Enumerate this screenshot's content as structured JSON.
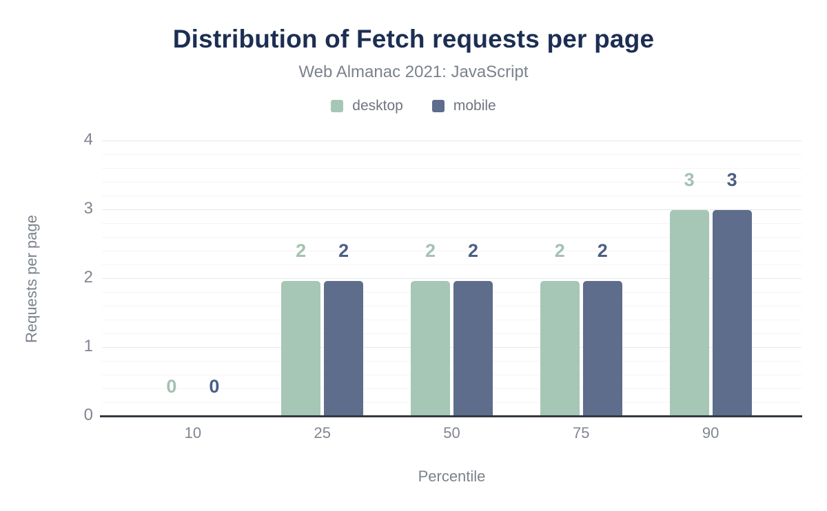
{
  "chart_data": {
    "type": "bar",
    "title": "Distribution of Fetch requests per page",
    "subtitle": "Web Almanac 2021: JavaScript",
    "xlabel": "Percentile",
    "ylabel": "Requests per page",
    "categories": [
      "10",
      "25",
      "50",
      "75",
      "90"
    ],
    "series": [
      {
        "name": "desktop",
        "color": "#a6c7b6",
        "label_color": "#a3c2b2",
        "values": [
          0,
          2,
          2,
          2,
          3
        ],
        "display_labels": [
          "0",
          "2",
          "2",
          "2",
          "3"
        ],
        "plotted": [
          0,
          1.97,
          1.97,
          1.97,
          3
        ]
      },
      {
        "name": "mobile",
        "color": "#5d6d8b",
        "label_color": "#4c5f85",
        "values": [
          0,
          2,
          2,
          2,
          3
        ],
        "display_labels": [
          "0",
          "2",
          "2",
          "2",
          "3"
        ],
        "plotted": [
          0,
          1.97,
          1.97,
          1.97,
          3
        ]
      }
    ],
    "ylim": [
      0,
      4
    ],
    "yticks": [
      "0",
      "1",
      "2",
      "3",
      "4"
    ],
    "minor_grid_step": 0.2,
    "grid": true,
    "legend_position": "top"
  },
  "style": {
    "background": "#ffffff",
    "title_color": "#1c2e52",
    "subtitle_color": "#7b828c",
    "legend_text_color": "#6e747e",
    "axis_tick_color": "#80858f",
    "axis_title_color": "#7b828c",
    "axis_line_color": "#32383f",
    "grid_major_color": "#e6e7ea",
    "grid_minor_color": "#f4f4f6"
  }
}
